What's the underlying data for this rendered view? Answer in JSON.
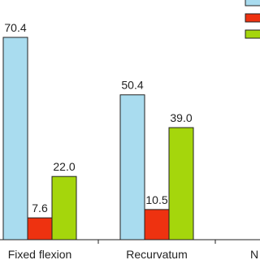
{
  "chart_data": {
    "type": "bar",
    "categories": [
      "Fixed flexion",
      "Recurvatum",
      "N"
    ],
    "series": [
      {
        "color": "#a9dcef",
        "values": [
          70.4,
          50.4,
          null
        ],
        "value_labels": [
          "70.4",
          "50.4",
          null
        ]
      },
      {
        "color": "#ee3210",
        "values": [
          7.6,
          10.5,
          null
        ],
        "value_labels": [
          "7.6",
          "10.5",
          null
        ]
      },
      {
        "color": "#a5d60c",
        "values": [
          22.0,
          39.0,
          null
        ],
        "value_labels": [
          "22.0",
          "39.0",
          null
        ]
      }
    ]
  }
}
